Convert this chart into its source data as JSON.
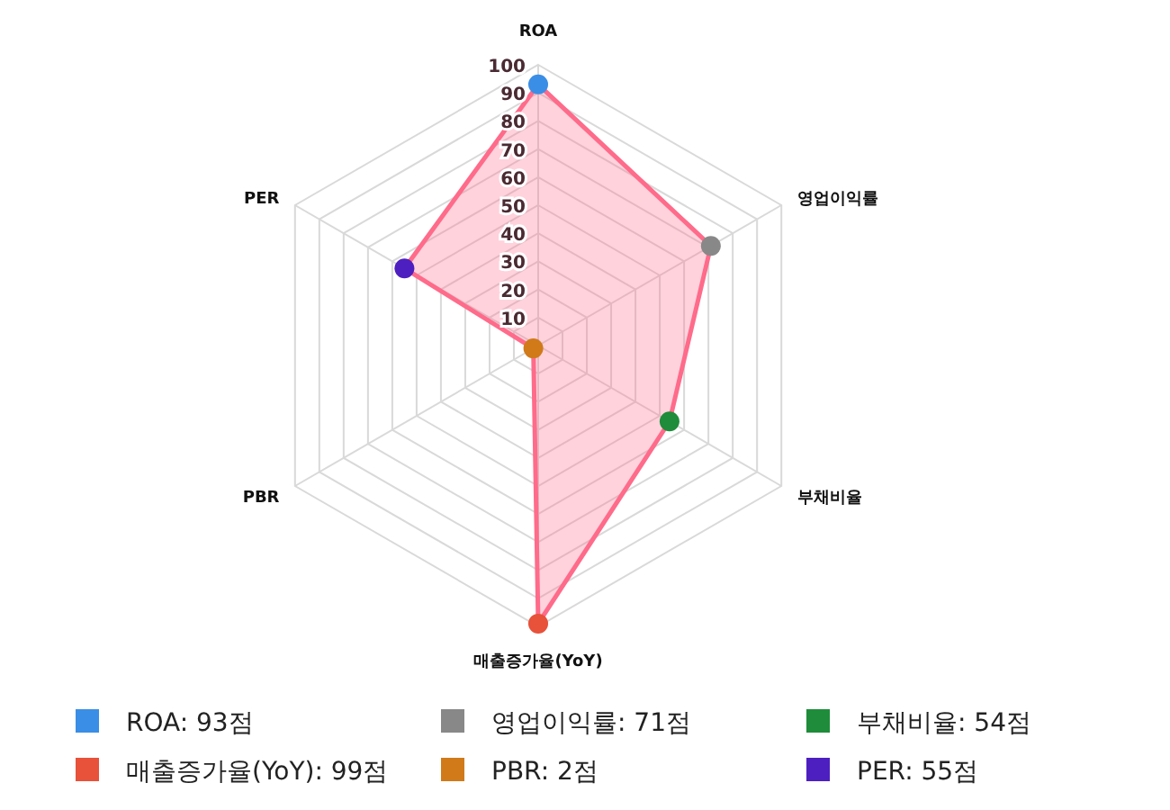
{
  "chart_data": {
    "type": "radar",
    "categories": [
      "ROA",
      "영업이익률",
      "부채비율",
      "매출증가율(YoY)",
      "PBR",
      "PER"
    ],
    "series": [
      {
        "color": "#ff6b8a",
        "values": [
          93,
          71,
          54,
          99,
          2,
          55
        ],
        "colors": [
          "#3a8ee6",
          "#888888",
          "#1e8c3a",
          "#e8513a",
          "#d07a1a",
          "#4d1fc0"
        ]
      }
    ],
    "annotations": [
      "ROA: 93점",
      "영업이익률: 71점",
      "부채비율: 54점",
      "매출증가율(YoY): 99점",
      "PBR: 2점",
      "PER: 55점"
    ],
    "ylim": [
      0,
      100
    ],
    "yticks": [
      10,
      20,
      30,
      40,
      50,
      60,
      70,
      80,
      90,
      100
    ],
    "grid": true,
    "marker": "circle"
  }
}
